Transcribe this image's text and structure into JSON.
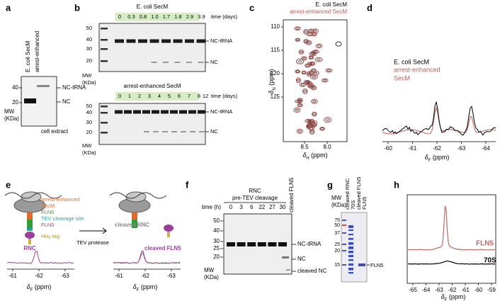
{
  "panel_labels": [
    "a",
    "b",
    "c",
    "d",
    "e",
    "f",
    "g",
    "h"
  ],
  "a": {
    "lanes": [
      "E. coli SecM",
      "arrest-enhanced"
    ],
    "mw": [
      "40",
      "20"
    ],
    "mw_label": "MW",
    "mw_unit": "(KDa)",
    "bands": [
      "NC-tRNA",
      "NC"
    ],
    "footer": "cell extract"
  },
  "b": {
    "top": {
      "title": "E. coli SecM",
      "times": [
        "0",
        "0.3",
        "0.8",
        "1.0",
        "1.7",
        "1.8",
        "2.9",
        "3.9"
      ],
      "time_label": "time (days)",
      "mw": [
        "50",
        "40",
        "30",
        "20"
      ],
      "mw_label": "MW",
      "mw_unit": "(KDa)",
      "bands": [
        "NC-tRNA",
        "NC"
      ]
    },
    "bottom": {
      "title": "arrest-enhanced SecM",
      "times": [
        "0",
        "1",
        "2",
        "3",
        "4",
        "5",
        "6",
        "7",
        "8",
        "12"
      ],
      "time_label": "time (days)",
      "mw": [
        "50",
        "40",
        "30",
        "20"
      ],
      "mw_label": "MW",
      "mw_unit": "(KDa)",
      "bands": [
        "NC-tRNA",
        "NC"
      ]
    }
  },
  "c": {
    "legend": [
      "E. coli SecM",
      "arrest-enhanced SecM"
    ],
    "yticks": [
      "110",
      "115",
      "120",
      "125"
    ],
    "xticks": [
      "8.5",
      "8.0"
    ],
    "ylabel": {
      "symbol": "δ",
      "sub": "N",
      "unit": " (ppm)"
    },
    "xlabel": {
      "symbol": "δ",
      "sub": "H",
      "unit": " (ppm)"
    }
  },
  "d": {
    "legend": [
      "E. coli SecM",
      "arrest-enhanced",
      "SecM"
    ],
    "xticks": [
      "-60",
      "-61",
      "-62",
      "-63",
      "-64"
    ],
    "xlabel": {
      "symbol": "δ",
      "sub": "F",
      "unit": " (ppm)"
    }
  },
  "e": {
    "constructs": [
      "arrest-enhanced",
      "SecM",
      "FLN6",
      "TEV cleavage site",
      "FLN5"
    ],
    "tag": {
      "text": "His",
      "sub": "6",
      "rest": " tag"
    },
    "rnc": "RNC",
    "cleaved_rnc": "cleaved RNC",
    "cleaved_fln5": "cleaved FLN5",
    "protease": "TEV protease",
    "spectra": [
      {
        "xticks": [
          "-61",
          "-62",
          "-63"
        ],
        "xlabel": {
          "symbol": "δ",
          "sub": "F",
          "unit": " (ppm)"
        }
      },
      {
        "xticks": [
          "-61",
          "-62",
          "-63"
        ],
        "xlabel": {
          "symbol": "δ",
          "sub": "F",
          "unit": " (ppm)"
        }
      }
    ]
  },
  "f": {
    "header": [
      "RNC",
      "pre-TEV cleavage"
    ],
    "lane_top": "cleaved FLN5",
    "time_label": "time (h)",
    "times": [
      "0",
      "3",
      "6",
      "22",
      "27",
      "30"
    ],
    "mw": [
      "50",
      "40",
      "30",
      "25",
      "20"
    ],
    "mw_label": "MW",
    "mw_unit": "(KDa)",
    "bands": [
      "NC-tRNA",
      "NC",
      "cleaved NC"
    ]
  },
  "g": {
    "mw_label": "MW",
    "mw_unit": "(KDa)",
    "mw": [
      "75",
      "50",
      "37",
      "25",
      "20",
      "15"
    ],
    "lanes": [
      "cleaved RNC",
      "70S",
      "cleaved FLN5",
      "FLN5"
    ],
    "band": "FLN5"
  },
  "h": {
    "traces": [
      "FLN5",
      "70S"
    ],
    "xticks": [
      "-65",
      "-64",
      "-63",
      "-62",
      "-61",
      "-60",
      "-59"
    ],
    "xlabel": {
      "symbol": "δ",
      "sub": "F",
      "unit": " (ppm)"
    }
  }
}
